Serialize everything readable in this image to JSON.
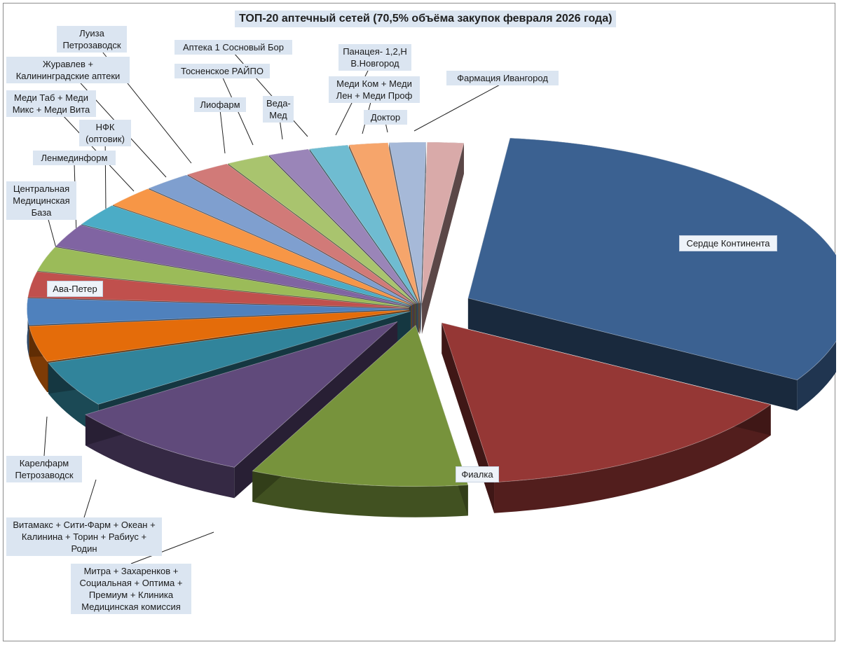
{
  "chart_data": {
    "type": "pie",
    "title": "ТОП-20 аптечный сетей (70,5% объёма закупок февраля 2026 года)",
    "three_d": true,
    "exploded": true,
    "slices": [
      {
        "label": "Сердце Континента",
        "value": 31.0,
        "color": "#3b6191"
      },
      {
        "label": "Фиалка",
        "value": 14.0,
        "color": "#953735"
      },
      {
        "label": "Митра + Захаренков + Социальная + Оптима + Премиум + Клиника Медицинская комиссия",
        "value": 9.0,
        "color": "#77933c"
      },
      {
        "label": "Витамакс + Сити-Фарм + Океан + Калинина + Торин + Рабиус + Родин",
        "value": 8.0,
        "color": "#604a7b"
      },
      {
        "label": "Карелфарм Петрозаводск",
        "value": 4.5,
        "color": "#31849b"
      },
      {
        "label": "Ава-Петер",
        "value": 3.5,
        "color": "#e46c0a"
      },
      {
        "label": "Центральная Медицинская База",
        "value": 2.6,
        "color": "#4f81bd"
      },
      {
        "label": "Ленмединформ",
        "value": 2.5,
        "color": "#c0504d"
      },
      {
        "label": "НФК (оптовик)",
        "value": 2.4,
        "color": "#9bbb59"
      },
      {
        "label": "Меди Таб + Меди Микс + Меди Вита",
        "value": 2.3,
        "color": "#8064a2"
      },
      {
        "label": "Журавлев + Калининградские аптеки",
        "value": 2.2,
        "color": "#4bacc6"
      },
      {
        "label": "Луиза Петрозаводск",
        "value": 2.1,
        "color": "#f79646"
      },
      {
        "label": "Лиофарм",
        "value": 2.0,
        "color": "#7f9fcf"
      },
      {
        "label": "Тосненское РАЙПО",
        "value": 1.9,
        "color": "#d17a78"
      },
      {
        "label": "Веда-Мед",
        "value": 1.8,
        "color": "#a9c46e"
      },
      {
        "label": "Аптека 1 Сосновый Бор",
        "value": 1.7,
        "color": "#9a85b8"
      },
      {
        "label": "Панацея- 1,2,Н В.Новгород",
        "value": 1.6,
        "color": "#6fbcd1"
      },
      {
        "label": "Меди Ком + Меди Лен + Меди Проф",
        "value": 1.6,
        "color": "#f6a56b"
      },
      {
        "label": "Доктор",
        "value": 1.5,
        "color": "#a6b9d8"
      },
      {
        "label": "Фармация Ивангород",
        "value": 1.5,
        "color": "#d9aaa9"
      }
    ]
  }
}
